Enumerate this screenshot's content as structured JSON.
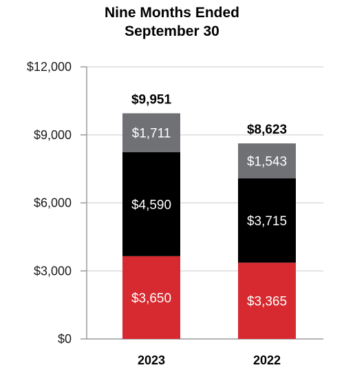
{
  "chart_data": {
    "type": "bar",
    "stacked": true,
    "title_lines": [
      "Nine Months Ended",
      "September 30"
    ],
    "categories": [
      "2023",
      "2022"
    ],
    "series": [
      {
        "values": [
          3650,
          3365
        ],
        "labels": [
          "$3,650",
          "$3,365"
        ],
        "color": "#d62a30"
      },
      {
        "values": [
          4590,
          3715
        ],
        "labels": [
          "$4,590",
          "$3,715"
        ],
        "color": "#000000"
      },
      {
        "values": [
          1711,
          1543
        ],
        "labels": [
          "$1,711",
          "$1,543"
        ],
        "color": "#707174"
      }
    ],
    "totals": [
      9951,
      8623
    ],
    "total_labels": [
      "$9,951",
      "$8,623"
    ],
    "ylim": [
      0,
      12000
    ],
    "yticks": [
      0,
      3000,
      6000,
      9000,
      12000
    ],
    "ytick_labels": [
      "$0",
      "$3,000",
      "$6,000",
      "$9,000",
      "$12,000"
    ],
    "grid": true,
    "legend": "none",
    "grid_color": "#dcdcdc",
    "axis_color": "#9a9a9a"
  }
}
